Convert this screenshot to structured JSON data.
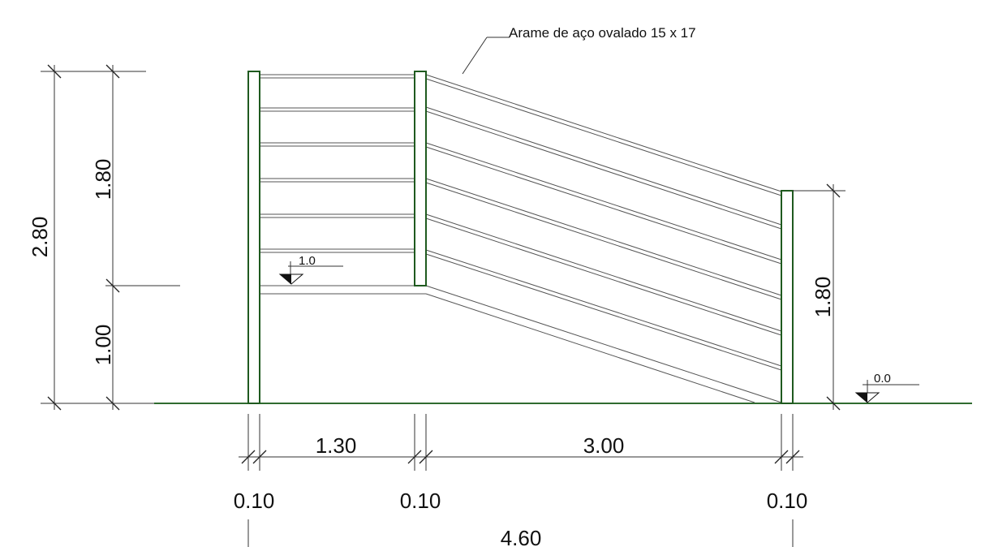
{
  "annotation": {
    "wire_label": "Arame de aço ovalado 15 x 17"
  },
  "levels": {
    "upper": "1.0",
    "ground": "0.0"
  },
  "dimensions": {
    "total_height": "2.80",
    "upper_height": "1.80",
    "lower_height": "1.00",
    "right_height": "1.80",
    "span_left": "1.30",
    "span_right": "3.00",
    "post_left": "0.10",
    "post_middle": "0.10",
    "post_right": "0.10",
    "total_width": "4.60"
  },
  "colors": {
    "post": "#1f5a1f",
    "ground": "#2f6b2f",
    "lines": "#555555"
  }
}
